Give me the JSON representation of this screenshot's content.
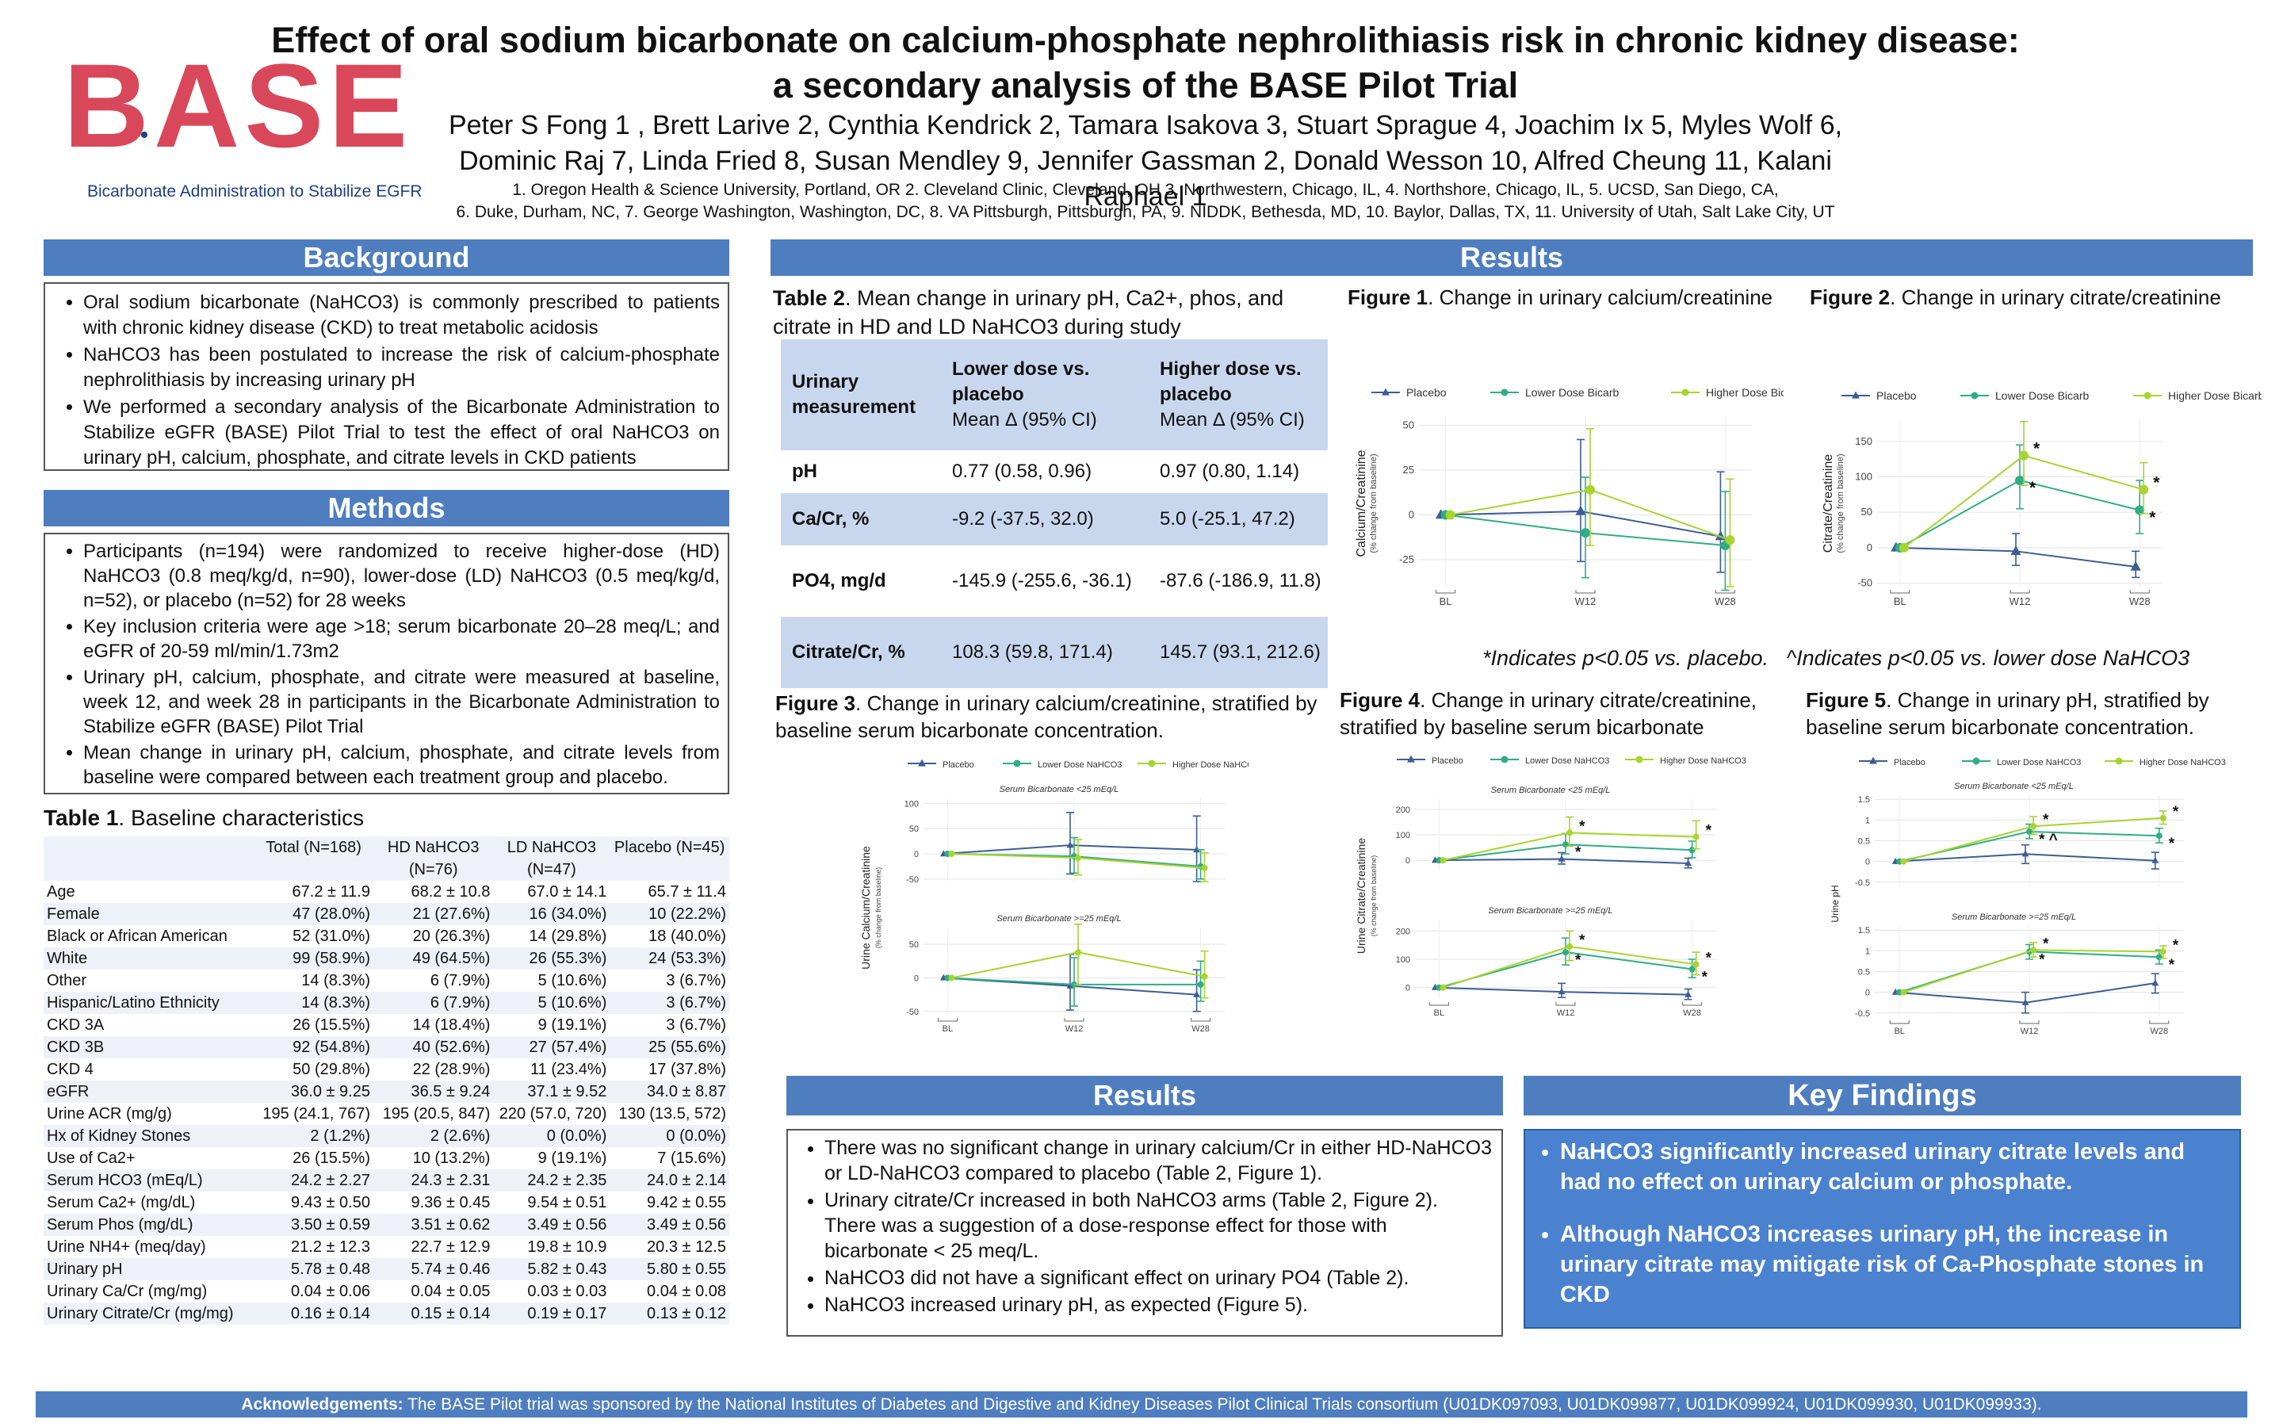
{
  "header": {
    "logo_text": "BASE",
    "logo_subtitle": "Bicarbonate Administration to Stabilize EGFR",
    "title_line1": "Effect of oral sodium bicarbonate on calcium-phosphate nephrolithiasis risk in chronic kidney disease:",
    "title_line2": "a secondary analysis of the BASE Pilot Trial",
    "authors_line1": "Peter S Fong 1 , Brett Larive 2, Cynthia Kendrick 2, Tamara Isakova 3, Stuart Sprague 4, Joachim Ix 5, Myles Wolf 6,",
    "authors_line2": "Dominic Raj 7, Linda Fried 8, Susan Mendley 9, Jennifer Gassman 2, Donald Wesson 10, Alfred Cheung 11, Kalani Raphael 1",
    "affil_line1": "1. Oregon Health & Science University, Portland, OR 2. Cleveland Clinic, Cleveland, OH 3. Northwestern, Chicago, IL, 4. Northshore, Chicago, IL, 5. UCSD, San Diego, CA,",
    "affil_line2": "6. Duke, Durham, NC, 7. George Washington, Washington, DC, 8. VA Pittsburgh, Pittsburgh, PA, 9. NIDDK, Bethesda, MD, 10. Baylor, Dallas, TX, 11. University of Utah, Salt Lake City, UT"
  },
  "background": {
    "heading": "Background",
    "bullets": [
      "Oral sodium bicarbonate (NaHCO3) is commonly prescribed to patients with chronic kidney disease (CKD) to treat metabolic acidosis",
      "NaHCO3 has been postulated to increase the risk of calcium-phosphate nephrolithiasis by increasing urinary pH",
      "We performed a secondary analysis of the Bicarbonate Administration to Stabilize eGFR (BASE) Pilot Trial to test the effect of oral NaHCO3 on urinary pH, calcium, phosphate, and citrate levels in CKD patients"
    ]
  },
  "methods": {
    "heading": "Methods",
    "bullets": [
      "Participants (n=194) were randomized to receive higher-dose (HD) NaHCO3 (0.8 meq/kg/d, n=90), lower-dose (LD) NaHCO3 (0.5 meq/kg/d, n=52), or placebo (n=52) for 28 weeks",
      "Key inclusion criteria were age >18; serum bicarbonate 20–28 meq/L; and eGFR of 20-59 ml/min/1.73m2",
      "Urinary pH, calcium, phosphate, and citrate were measured at baseline, week 12, and week 28 in participants in the Bicarbonate Administration to Stabilize eGFR (BASE) Pilot Trial",
      "Mean change in urinary pH, calcium, phosphate, and citrate levels from baseline were compared between each treatment group and placebo."
    ]
  },
  "table1": {
    "title_bold": "Table 1",
    "title_rest": ". Baseline characteristics",
    "headers": [
      "",
      "Total (N=168)",
      "HD NaHCO3 (N=76)",
      "LD NaHCO3 (N=47)",
      "Placebo (N=45)"
    ],
    "rows": [
      [
        "Age",
        "67.2 ± 11.9",
        "68.2 ± 10.8",
        "67.0 ± 14.1",
        "65.7 ± 11.4"
      ],
      [
        "Female",
        "47 (28.0%)",
        "21 (27.6%)",
        "16 (34.0%)",
        "10 (22.2%)"
      ],
      [
        "Black or African American",
        "52 (31.0%)",
        "20 (26.3%)",
        "14 (29.8%)",
        "18 (40.0%)"
      ],
      [
        "White",
        "99 (58.9%)",
        "49 (64.5%)",
        "26 (55.3%)",
        "24 (53.3%)"
      ],
      [
        "Other",
        "14 (8.3%)",
        "6 (7.9%)",
        "5 (10.6%)",
        "3 (6.7%)"
      ],
      [
        "Hispanic/Latino Ethnicity",
        "14 (8.3%)",
        "6 (7.9%)",
        "5 (10.6%)",
        "3 (6.7%)"
      ],
      [
        "CKD 3A",
        "26 (15.5%)",
        "14 (18.4%)",
        "9 (19.1%)",
        "3 (6.7%)"
      ],
      [
        "CKD 3B",
        "92 (54.8%)",
        "40 (52.6%)",
        "27 (57.4%)",
        "25 (55.6%)"
      ],
      [
        "CKD 4",
        "50 (29.8%)",
        "22 (28.9%)",
        "11 (23.4%)",
        "17 (37.8%)"
      ],
      [
        "eGFR",
        "36.0 ± 9.25",
        "36.5 ± 9.24",
        "37.1 ± 9.52",
        "34.0 ± 8.87"
      ],
      [
        "Urine ACR (mg/g)",
        "195 (24.1, 767)",
        "195 (20.5, 847)",
        "220 (57.0, 720)",
        "130 (13.5, 572)"
      ],
      [
        "Hx of Kidney Stones",
        "2 (1.2%)",
        "2 (2.6%)",
        "0 (0.0%)",
        "0 (0.0%)"
      ],
      [
        "Use of Ca2+",
        "26 (15.5%)",
        "10 (13.2%)",
        "9 (19.1%)",
        "7 (15.6%)"
      ],
      [
        "Serum HCO3 (mEq/L)",
        "24.2 ± 2.27",
        "24.3 ± 2.31",
        "24.2 ± 2.35",
        "24.0 ± 2.14"
      ],
      [
        "Serum Ca2+ (mg/dL)",
        "9.43 ± 0.50",
        "9.36 ± 0.45",
        "9.54 ± 0.51",
        "9.42 ± 0.55"
      ],
      [
        "Serum Phos (mg/dL)",
        "3.50 ± 0.59",
        "3.51 ± 0.62",
        "3.49 ± 0.56",
        "3.49 ± 0.56"
      ],
      [
        "Urine NH4+ (meq/day)",
        "21.2 ± 12.3",
        "22.7 ± 12.9",
        "19.8 ± 10.9",
        "20.3 ± 12.5"
      ],
      [
        "Urinary pH",
        "5.78 ± 0.48",
        "5.74 ± 0.46",
        "5.82 ± 0.43",
        "5.80 ± 0.55"
      ],
      [
        "Urinary Ca/Cr (mg/mg)",
        "0.04 ± 0.06",
        "0.04 ± 0.05",
        "0.03 ± 0.03",
        "0.04 ± 0.08"
      ],
      [
        "Urinary Citrate/Cr (mg/mg)",
        "0.16 ± 0.14",
        "0.15 ± 0.14",
        "0.19 ± 0.17",
        "0.13 ± 0.12"
      ]
    ]
  },
  "results_top": {
    "heading": "Results"
  },
  "table2": {
    "title_bold": "Table 2",
    "title_rest": ". Mean change in urinary pH, Ca2+, phos, and citrate in HD and LD NaHCO3 during study",
    "col1": "Urinary measurement",
    "col2_head": "Lower dose vs. placebo",
    "col2_sub": "Mean Δ (95% CI)",
    "col3_head": "Higher dose vs. placebo",
    "col3_sub": "Mean Δ (95% CI)",
    "rows": [
      [
        "pH",
        "0.77 (0.58, 0.96)",
        "0.97 (0.80, 1.14)"
      ],
      [
        "Ca/Cr, %",
        "-9.2 (-37.5, 32.0)",
        "5.0 (-25.1, 47.2)"
      ],
      [
        "PO4, mg/d",
        "-145.9 (-255.6, -36.1)",
        "-87.6 (-186.9, 11.8)"
      ],
      [
        "Citrate/Cr, %",
        "108.3 (59.8, 171.4)",
        "145.7 (93.1, 212.6)"
      ]
    ]
  },
  "legend": {
    "placebo": "Placebo",
    "low": "Lower Dose Bicarb",
    "high": "Higher Dose Bicarb",
    "low_nahco3": "Lower Dose NaHCO3",
    "high_nahco3": "Higher Dose NaHCO3"
  },
  "colors": {
    "placebo": "#3b5e95",
    "low": "#2fad85",
    "high": "#a8d42e",
    "banner": "#4f7ec0",
    "key_box": "#4a82cf"
  },
  "figure1": {
    "title_bold": "Figure 1",
    "title_rest": ". Change in urinary calcium/creatinine",
    "ylabel": "Calcium/Creatinine",
    "ylabel2": "(% change from baseline)"
  },
  "figure2": {
    "title_bold": "Figure 2",
    "title_rest": ". Change in urinary citrate/creatinine",
    "ylabel": "Citrate/Creatinine",
    "ylabel2": "(% change from baseline)"
  },
  "figure3": {
    "title_bold": "Figure 3",
    "title_rest": ". Change in urinary calcium/creatinine, stratified by baseline serum bicarbonate concentration.",
    "ylabel": "Urine Calcium/Creatinine",
    "ylabel2": "(% change from baseline)",
    "panel_top": "Serum Bicarbonate <25 mEq/L",
    "panel_bottom": "Serum Bicarbonate >=25 mEq/L"
  },
  "figure4": {
    "title_bold": "Figure 4",
    "title_rest": ". Change in urinary citrate/creatinine, stratified by baseline serum bicarbonate",
    "ylabel": "Urine Citrate/Creatinine",
    "ylabel2": "(% change from baseline)",
    "panel_top": "Serum Bicarbonate <25 mEq/L",
    "panel_bottom": "Serum Bicarbonate >=25 mEq/L"
  },
  "figure5": {
    "title_bold": "Figure 5",
    "title_rest": ". Change in urinary pH, stratified by baseline serum bicarbonate concentration.",
    "ylabel": "Urine pH",
    "panel_top": "Serum Bicarbonate <25 mEq/L",
    "panel_bottom": "Serum Bicarbonate >=25 mEq/L"
  },
  "significance_note": "*Indicates p<0.05 vs. placebo.   ^Indicates p<0.05 vs. lower dose NaHCO3",
  "chart_data": [
    {
      "id": "fig1",
      "type": "line",
      "title": "Change in urinary calcium/creatinine",
      "categories": [
        "BL",
        "W12",
        "W28"
      ],
      "ylim": [
        -40,
        55
      ],
      "yticks": [
        -25,
        0,
        25,
        50
      ],
      "series": [
        {
          "name": "Placebo",
          "values": [
            0,
            2,
            -12
          ],
          "lo": [
            0,
            -26,
            -32
          ],
          "hi": [
            0,
            42,
            24
          ]
        },
        {
          "name": "Lower Dose Bicarb",
          "values": [
            0,
            -10,
            -17
          ],
          "lo": [
            0,
            -35,
            -42
          ],
          "hi": [
            0,
            21,
            13
          ]
        },
        {
          "name": "Higher Dose Bicarb",
          "values": [
            0,
            14,
            -14
          ],
          "lo": [
            0,
            -17,
            -40
          ],
          "hi": [
            0,
            48,
            20
          ]
        }
      ]
    },
    {
      "id": "fig2",
      "type": "line",
      "title": "Change in urinary citrate/creatinine",
      "categories": [
        "BL",
        "W12",
        "W28"
      ],
      "ylim": [
        -55,
        180
      ],
      "yticks": [
        -50,
        0,
        50,
        100,
        150
      ],
      "series": [
        {
          "name": "Placebo",
          "values": [
            0,
            -5,
            -27
          ],
          "lo": [
            0,
            -25,
            -42
          ],
          "hi": [
            0,
            20,
            -5
          ]
        },
        {
          "name": "Lower Dose Bicarb",
          "values": [
            0,
            95,
            53
          ],
          "lo": [
            0,
            55,
            20
          ],
          "hi": [
            0,
            145,
            95
          ]
        },
        {
          "name": "Higher Dose Bicarb",
          "values": [
            0,
            130,
            82
          ],
          "lo": [
            0,
            88,
            48
          ],
          "hi": [
            0,
            178,
            120
          ]
        }
      ],
      "annotations": [
        "*",
        "*",
        "*",
        "*"
      ]
    },
    {
      "id": "fig3_top",
      "type": "line",
      "title": "Serum Bicarbonate <25 mEq/L",
      "categories": [
        "BL",
        "W12",
        "W28"
      ],
      "ylim": [
        -55,
        110
      ],
      "yticks": [
        -50,
        0,
        50,
        100
      ],
      "series": [
        {
          "name": "Placebo",
          "values": [
            0,
            17,
            8
          ],
          "lo": [
            0,
            -40,
            -55
          ],
          "hi": [
            0,
            82,
            75
          ]
        },
        {
          "name": "Lower Dose NaHCO3",
          "values": [
            0,
            -5,
            -25
          ],
          "lo": [
            0,
            -38,
            -50
          ],
          "hi": [
            0,
            32,
            8
          ]
        },
        {
          "name": "Higher Dose NaHCO3",
          "values": [
            0,
            -8,
            -28
          ],
          "lo": [
            0,
            -42,
            -55
          ],
          "hi": [
            0,
            28,
            2
          ]
        }
      ]
    },
    {
      "id": "fig3_bottom",
      "type": "line",
      "title": "Serum Bicarbonate >=25 mEq/L",
      "categories": [
        "BL",
        "W12",
        "W28"
      ],
      "ylim": [
        -55,
        75
      ],
      "yticks": [
        -50,
        0,
        50
      ],
      "series": [
        {
          "name": "Placebo",
          "values": [
            0,
            -12,
            -25
          ],
          "lo": [
            0,
            -48,
            -50
          ],
          "hi": [
            0,
            35,
            12
          ]
        },
        {
          "name": "Lower Dose NaHCO3",
          "values": [
            0,
            -10,
            -10
          ],
          "lo": [
            0,
            -42,
            -35
          ],
          "hi": [
            0,
            30,
            25
          ]
        },
        {
          "name": "Higher Dose NaHCO3",
          "values": [
            0,
            38,
            2
          ],
          "lo": [
            0,
            -10,
            -30
          ],
          "hi": [
            0,
            80,
            40
          ]
        }
      ]
    },
    {
      "id": "fig4_top",
      "type": "line",
      "title": "Serum Bicarbonate <25 mEq/L",
      "categories": [
        "BL",
        "W12",
        "W28"
      ],
      "ylim": [
        -40,
        240
      ],
      "yticks": [
        0,
        100,
        200
      ],
      "series": [
        {
          "name": "Placebo",
          "values": [
            0,
            5,
            -12
          ],
          "lo": [
            0,
            -15,
            -30
          ],
          "hi": [
            0,
            30,
            8
          ]
        },
        {
          "name": "Lower Dose NaHCO3",
          "values": [
            0,
            62,
            40
          ],
          "lo": [
            0,
            25,
            10
          ],
          "hi": [
            0,
            105,
            75
          ]
        },
        {
          "name": "Higher Dose NaHCO3",
          "values": [
            0,
            108,
            92
          ],
          "lo": [
            0,
            55,
            45
          ],
          "hi": [
            0,
            170,
            155
          ]
        }
      ],
      "annotations": [
        "*",
        "*",
        "*"
      ]
    },
    {
      "id": "fig4_bottom",
      "type": "line",
      "title": "Serum Bicarbonate >=25 mEq/L",
      "categories": [
        "BL",
        "W12",
        "W28"
      ],
      "ylim": [
        -40,
        240
      ],
      "yticks": [
        0,
        100,
        200
      ],
      "series": [
        {
          "name": "Placebo",
          "values": [
            0,
            -15,
            -25
          ],
          "lo": [
            0,
            -35,
            -42
          ],
          "hi": [
            0,
            15,
            -5
          ]
        },
        {
          "name": "Lower Dose NaHCO3",
          "values": [
            0,
            125,
            65
          ],
          "lo": [
            0,
            80,
            35
          ],
          "hi": [
            0,
            175,
            100
          ]
        },
        {
          "name": "Higher Dose NaHCO3",
          "values": [
            0,
            145,
            82
          ],
          "lo": [
            0,
            95,
            45
          ],
          "hi": [
            0,
            200,
            125
          ]
        }
      ],
      "annotations": [
        "*",
        "*",
        "*",
        "*"
      ]
    },
    {
      "id": "fig5_top",
      "type": "line",
      "title": "Serum Bicarbonate <25 mEq/L",
      "categories": [
        "BL",
        "W12",
        "W28"
      ],
      "ylim": [
        -0.6,
        1.6
      ],
      "yticks": [
        -0.5,
        0,
        0.5,
        1.0,
        1.5
      ],
      "series": [
        {
          "name": "Placebo",
          "values": [
            0,
            0.18,
            0.02
          ],
          "lo": [
            0,
            -0.05,
            -0.18
          ],
          "hi": [
            0,
            0.4,
            0.22
          ]
        },
        {
          "name": "Lower Dose NaHCO3",
          "values": [
            0,
            0.72,
            0.62
          ],
          "lo": [
            0,
            0.55,
            0.45
          ],
          "hi": [
            0,
            0.9,
            0.8
          ]
        },
        {
          "name": "Higher Dose NaHCO3",
          "values": [
            0,
            0.85,
            1.05
          ],
          "lo": [
            0,
            0.65,
            0.9
          ],
          "hi": [
            0,
            1.08,
            1.22
          ]
        }
      ],
      "annotations": [
        "*",
        "*",
        "* ^",
        "*"
      ]
    },
    {
      "id": "fig5_bottom",
      "type": "line",
      "title": "Serum Bicarbonate >=25 mEq/L",
      "categories": [
        "BL",
        "W12",
        "W28"
      ],
      "ylim": [
        -0.6,
        1.6
      ],
      "yticks": [
        -0.5,
        0,
        0.5,
        1.0,
        1.5
      ],
      "series": [
        {
          "name": "Placebo",
          "values": [
            0,
            -0.25,
            0.22
          ],
          "lo": [
            0,
            -0.5,
            -0.02
          ],
          "hi": [
            0,
            0.0,
            0.45
          ]
        },
        {
          "name": "Lower Dose NaHCO3",
          "values": [
            0,
            0.98,
            0.85
          ],
          "lo": [
            0,
            0.8,
            0.68
          ],
          "hi": [
            0,
            1.15,
            1.02
          ]
        },
        {
          "name": "Higher Dose NaHCO3",
          "values": [
            0,
            1.02,
            0.98
          ],
          "lo": [
            0,
            0.85,
            0.82
          ],
          "hi": [
            0,
            1.2,
            1.12
          ]
        }
      ],
      "annotations": [
        "*",
        "*",
        "*",
        "*"
      ]
    }
  ],
  "results_bottom": {
    "heading": "Results",
    "bullets": [
      "There was no significant change in urinary calcium/Cr in either HD-NaHCO3 or LD-NaHCO3 compared to placebo (Table 2, Figure 1).",
      "Urinary citrate/Cr increased in both NaHCO3 arms (Table 2, Figure 2). There was a suggestion of a dose-response effect for those with bicarbonate < 25 meq/L.",
      "NaHCO3 did not have a significant effect on urinary PO4 (Table 2).",
      "NaHCO3 increased urinary pH, as expected (Figure 5)."
    ]
  },
  "key_findings": {
    "heading": "Key Findings",
    "bullets": [
      "NaHCO3 significantly increased urinary citrate levels and had no effect on urinary calcium or phosphate.",
      "Although NaHCO3 increases urinary pH, the increase in urinary citrate may mitigate risk of Ca-Phosphate stones in CKD"
    ]
  },
  "acknowledgements": {
    "label": "Acknowledgements:",
    "text": "The BASE Pilot trial was sponsored by the National Institutes of Diabetes and Digestive and Kidney Diseases Pilot Clinical Trials consortium (U01DK097093, U01DK099877, U01DK099924, U01DK099930, U01DK099933)."
  }
}
